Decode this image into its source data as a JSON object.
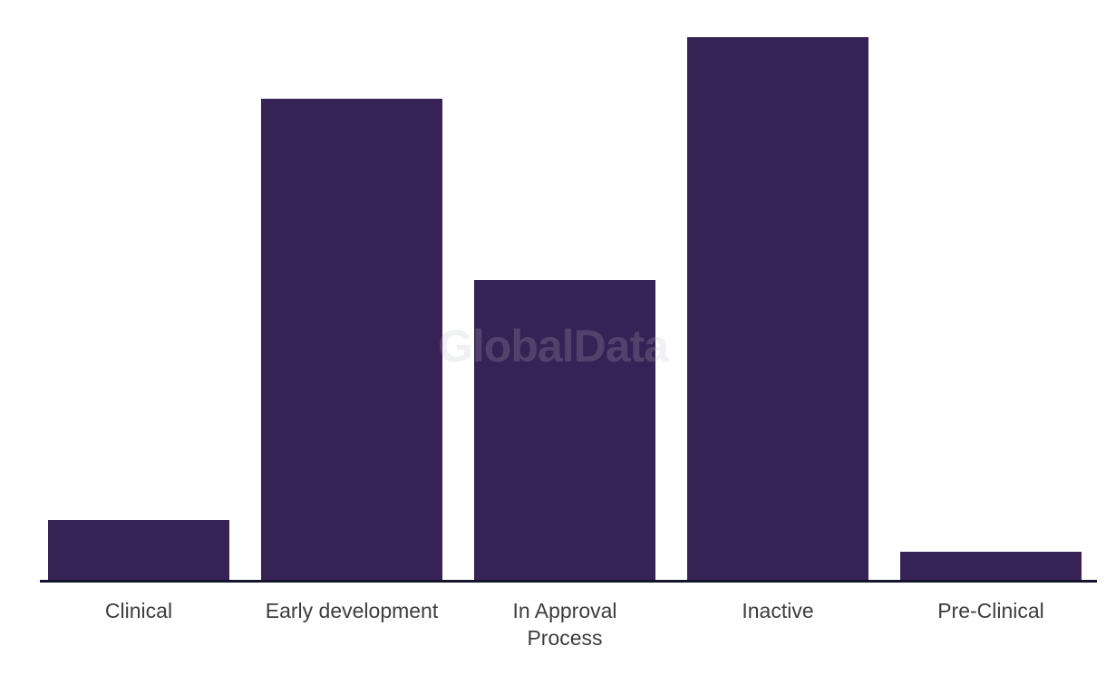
{
  "watermark": {
    "text": "GlobalData"
  },
  "chart_data": {
    "type": "bar",
    "title": "",
    "xlabel": "",
    "ylabel": "",
    "categories": [
      "Clinical",
      "Early development",
      "In Approval Process",
      "Inactive",
      "Pre-Clinical"
    ],
    "labels_display": [
      "Clinical",
      "Early development",
      "In Approval\nProcess",
      "Inactive",
      "Pre-Clinical"
    ],
    "values": [
      11.2,
      88.7,
      55.3,
      100,
      5.3
    ],
    "value_note": "relative bar heights as % of tallest bar (Inactive); no y-axis or data labels shown",
    "series_color": "#362255",
    "axis_line_color": "#14142c",
    "label_color": "#3d3d3d",
    "background_color": "#ffffff",
    "y_axis_visible": false,
    "grid": false,
    "legend": false
  }
}
